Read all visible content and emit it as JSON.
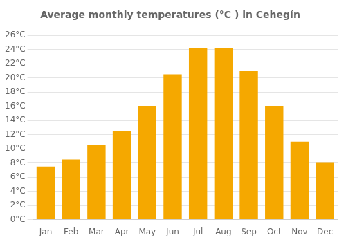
{
  "chart_data": {
    "type": "bar",
    "title": "Average monthly temperatures (°C ) in Cehegín",
    "categories": [
      "Jan",
      "Feb",
      "Mar",
      "Apr",
      "May",
      "Jun",
      "Jul",
      "Aug",
      "Sep",
      "Oct",
      "Nov",
      "Dec"
    ],
    "values": [
      7.5,
      8.5,
      10.5,
      12.5,
      16.0,
      20.5,
      24.2,
      24.2,
      21.0,
      16.0,
      11.0,
      8.0
    ],
    "color": "#F5A800",
    "ylim": [
      0,
      27
    ],
    "yticks": [
      {
        "value": 0,
        "label": "0°C"
      },
      {
        "value": 2,
        "label": "2°C"
      },
      {
        "value": 4,
        "label": "4°C"
      },
      {
        "value": 6,
        "label": "6°C"
      },
      {
        "value": 8,
        "label": "8°C"
      },
      {
        "value": 10,
        "label": "10°C"
      },
      {
        "value": 12,
        "label": "12°C"
      },
      {
        "value": 14,
        "label": "14°C"
      },
      {
        "value": 16,
        "label": "16°C"
      },
      {
        "value": 18,
        "label": "18°C"
      },
      {
        "value": 20,
        "label": "20°C"
      },
      {
        "value": 22,
        "label": "22°C"
      },
      {
        "value": 24,
        "label": "24°C"
      },
      {
        "value": 26,
        "label": "26°C"
      }
    ],
    "grid": true
  }
}
